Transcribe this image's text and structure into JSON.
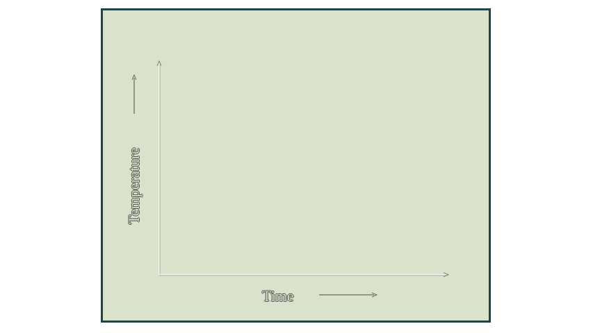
{
  "chart_data": {
    "type": "line",
    "title": "",
    "xlabel": "Time",
    "ylabel": "Temperature",
    "series": [],
    "grid": false,
    "axis_color": "#ffffff",
    "panel_background": "#dae2cb",
    "panel_border": "#1f4446"
  }
}
